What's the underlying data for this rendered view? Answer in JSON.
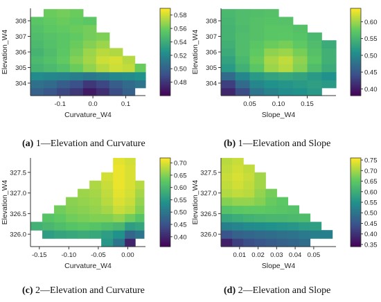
{
  "captions": [
    {
      "label": "(a)",
      "text": "1—Elevation and Curvature"
    },
    {
      "label": "(b)",
      "text": "1—Elevation and Slope"
    },
    {
      "label": "(c)",
      "text": "2—Elevation and Curvature"
    },
    {
      "label": "(d)",
      "text": "2—Elevation and Slope"
    }
  ],
  "chart_data": [
    {
      "type": "heatmap",
      "xlabel": "Curvature_W4",
      "ylabel": "Elevation_W4",
      "xlim": [
        -0.19,
        0.16
      ],
      "ylim": [
        303.2,
        308.8
      ],
      "xticks": [
        -0.1,
        0.0,
        0.1
      ],
      "xtick_labels": [
        "-0.1",
        "0.0",
        "0.1"
      ],
      "yticks": [
        304,
        305,
        306,
        307,
        308
      ],
      "ytick_labels": [
        "304",
        "305",
        "306",
        "307",
        "308"
      ],
      "colorbar": {
        "min": 0.46,
        "max": 0.59,
        "ticks": [
          0.48,
          0.5,
          0.52,
          0.54,
          0.56,
          0.58
        ],
        "tick_labels": [
          "0.48",
          "0.50",
          "0.52",
          "0.54",
          "0.56",
          "0.58"
        ]
      },
      "colormap": [
        "#440154",
        "#3b528b",
        "#21918c",
        "#5ec962",
        "#fde725"
      ],
      "x_centers": [
        -0.17,
        -0.13,
        -0.09,
        -0.05,
        -0.01,
        0.03,
        0.07,
        0.11,
        0.145
      ],
      "y_centers": [
        303.45,
        303.95,
        304.45,
        305.0,
        305.5,
        306.0,
        306.5,
        307.0,
        307.5,
        308.0,
        308.5
      ],
      "z": [
        [
          0.5,
          0.495,
          0.488,
          0.482,
          0.47,
          0.478,
          0.49,
          0.5,
          null
        ],
        [
          0.508,
          0.505,
          0.498,
          0.492,
          0.482,
          0.488,
          0.498,
          0.505,
          0.51
        ],
        [
          0.522,
          0.52,
          0.518,
          0.515,
          0.512,
          0.515,
          0.52,
          0.522,
          0.525
        ],
        [
          0.545,
          0.548,
          0.552,
          0.56,
          0.568,
          0.575,
          0.58,
          0.578,
          0.56
        ],
        [
          0.548,
          0.552,
          0.558,
          0.565,
          0.572,
          0.58,
          0.582,
          0.575,
          null
        ],
        [
          0.545,
          0.55,
          0.556,
          0.562,
          0.57,
          0.576,
          0.574,
          null,
          null
        ],
        [
          0.548,
          0.552,
          0.555,
          0.56,
          0.565,
          0.57,
          null,
          null,
          null
        ],
        [
          0.55,
          0.553,
          0.555,
          0.558,
          0.562,
          0.564,
          null,
          null,
          null
        ],
        [
          0.552,
          0.556,
          0.558,
          0.56,
          0.562,
          null,
          null,
          null,
          null
        ],
        [
          0.555,
          0.558,
          0.56,
          0.558,
          0.556,
          null,
          null,
          null,
          null
        ],
        [
          null,
          0.56,
          0.562,
          0.56,
          null,
          null,
          null,
          null,
          null
        ]
      ]
    },
    {
      "type": "heatmap",
      "xlabel": "Slope_W4",
      "ylabel": "Elevation_W4",
      "xlim": [
        0.0,
        0.2
      ],
      "ylim": [
        303.2,
        308.8
      ],
      "xticks": [
        0.05,
        0.1,
        0.15
      ],
      "xtick_labels": [
        "0.05",
        "0.10",
        "0.15"
      ],
      "yticks": [
        304,
        305,
        306,
        307,
        308
      ],
      "ytick_labels": [
        "304",
        "305",
        "306",
        "307",
        "308"
      ],
      "colorbar": {
        "min": 0.38,
        "max": 0.64,
        "ticks": [
          0.4,
          0.45,
          0.5,
          0.55,
          0.6
        ],
        "tick_labels": [
          "0.40",
          "0.45",
          "0.50",
          "0.55",
          "0.60"
        ]
      },
      "colormap": [
        "#440154",
        "#3b528b",
        "#21918c",
        "#5ec962",
        "#fde725"
      ],
      "x_centers": [
        0.0125,
        0.0375,
        0.0625,
        0.0875,
        0.1125,
        0.1375,
        0.1625,
        0.1875
      ],
      "y_centers": [
        303.45,
        303.95,
        304.45,
        305.0,
        305.5,
        306.0,
        306.5,
        307.0,
        307.5,
        308.0,
        308.5
      ],
      "z": [
        [
          0.41,
          0.44,
          0.48,
          0.495,
          0.505,
          0.51,
          0.52,
          null
        ],
        [
          0.43,
          0.47,
          0.5,
          0.51,
          0.515,
          0.52,
          0.525,
          0.52
        ],
        [
          0.47,
          0.5,
          0.52,
          0.53,
          0.535,
          0.53,
          0.52,
          0.51
        ],
        [
          0.52,
          0.545,
          0.57,
          0.6,
          0.61,
          0.59,
          0.56,
          0.54
        ],
        [
          0.53,
          0.555,
          0.58,
          0.605,
          0.615,
          0.595,
          0.57,
          0.545
        ],
        [
          0.54,
          0.56,
          0.575,
          0.595,
          0.6,
          0.585,
          0.565,
          0.545
        ],
        [
          0.545,
          0.56,
          0.57,
          0.58,
          0.585,
          0.575,
          0.56,
          0.54
        ],
        [
          0.55,
          0.56,
          0.565,
          0.57,
          0.572,
          0.568,
          0.555,
          null
        ],
        [
          0.55,
          0.558,
          0.565,
          0.57,
          0.57,
          0.565,
          null,
          null
        ],
        [
          0.552,
          0.56,
          0.565,
          0.568,
          0.566,
          null,
          null,
          null
        ],
        [
          0.555,
          0.56,
          0.562,
          0.565,
          null,
          null,
          null,
          null
        ]
      ]
    },
    {
      "type": "heatmap",
      "xlabel": "Curvature_W4",
      "ylabel": "Elevation_W4",
      "xlim": [
        -0.165,
        0.03
      ],
      "ylim": [
        325.7,
        327.85
      ],
      "xticks": [
        -0.15,
        -0.1,
        -0.05,
        0.0
      ],
      "xtick_labels": [
        "-0.15",
        "-0.10",
        "-0.05",
        "0.00"
      ],
      "yticks": [
        326.0,
        326.5,
        327.0,
        327.5
      ],
      "ytick_labels": [
        "326.0",
        "326.5",
        "327.0",
        "327.5"
      ],
      "colorbar": {
        "min": 0.36,
        "max": 0.72,
        "ticks": [
          0.4,
          0.45,
          0.5,
          0.55,
          0.6,
          0.65,
          0.7
        ],
        "tick_labels": [
          "0.40",
          "0.45",
          "0.50",
          "0.55",
          "0.60",
          "0.65",
          "0.70"
        ]
      },
      "colormap": [
        "#440154",
        "#3b528b",
        "#21918c",
        "#5ec962",
        "#fde725"
      ],
      "x_centers": [
        -0.155,
        -0.135,
        -0.115,
        -0.095,
        -0.075,
        -0.055,
        -0.035,
        -0.015,
        0.005,
        0.02
      ],
      "y_centers": [
        325.8,
        326.0,
        326.2,
        326.4,
        326.6,
        326.8,
        327.0,
        327.2,
        327.4,
        327.6,
        327.78
      ],
      "z": [
        [
          null,
          null,
          null,
          null,
          null,
          null,
          0.55,
          0.5,
          0.4,
          null
        ],
        [
          null,
          0.56,
          0.57,
          0.575,
          0.58,
          0.575,
          0.56,
          0.54,
          0.48,
          0.5
        ],
        [
          0.59,
          0.6,
          0.61,
          0.62,
          0.625,
          0.62,
          0.61,
          0.6,
          0.56,
          0.57
        ],
        [
          null,
          0.62,
          0.63,
          0.64,
          0.645,
          0.65,
          0.65,
          0.66,
          0.64,
          0.62
        ],
        [
          null,
          null,
          0.64,
          0.65,
          0.655,
          0.66,
          0.67,
          0.69,
          0.68,
          0.65
        ],
        [
          null,
          null,
          null,
          0.655,
          0.66,
          0.665,
          0.68,
          0.7,
          0.69,
          0.66
        ],
        [
          null,
          null,
          null,
          null,
          0.665,
          0.67,
          0.685,
          0.705,
          0.695,
          0.67
        ],
        [
          null,
          null,
          null,
          null,
          null,
          0.675,
          0.69,
          0.71,
          0.7,
          0.68
        ],
        [
          null,
          null,
          null,
          null,
          null,
          null,
          0.695,
          0.71,
          0.7,
          null
        ],
        [
          null,
          null,
          null,
          null,
          null,
          null,
          null,
          0.71,
          0.7,
          null
        ],
        [
          null,
          null,
          null,
          null,
          null,
          null,
          null,
          0.705,
          0.695,
          null
        ]
      ]
    },
    {
      "type": "heatmap",
      "xlabel": "Slope_W4",
      "ylabel": "Elevation_W4",
      "xlim": [
        0.0,
        0.062
      ],
      "ylim": [
        325.7,
        327.85
      ],
      "xticks": [
        0.01,
        0.02,
        0.03,
        0.04,
        0.05
      ],
      "xtick_labels": [
        "0.01",
        "0.02",
        "0.03",
        "0.04",
        "0.05"
      ],
      "yticks": [
        326.0,
        326.5,
        327.0,
        327.5
      ],
      "ytick_labels": [
        "326.0",
        "326.5",
        "327.0",
        "327.5"
      ],
      "colorbar": {
        "min": 0.34,
        "max": 0.76,
        "ticks": [
          0.35,
          0.4,
          0.45,
          0.5,
          0.55,
          0.6,
          0.65,
          0.7,
          0.75
        ],
        "tick_labels": [
          "0.35",
          "0.40",
          "0.45",
          "0.50",
          "0.55",
          "0.60",
          "0.65",
          "0.70",
          "0.75"
        ]
      },
      "colormap": [
        "#440154",
        "#3b528b",
        "#21918c",
        "#5ec962",
        "#fde725"
      ],
      "x_centers": [
        0.003,
        0.009,
        0.015,
        0.021,
        0.027,
        0.033,
        0.039,
        0.045,
        0.051,
        0.057
      ],
      "y_centers": [
        325.8,
        326.0,
        326.2,
        326.4,
        326.6,
        326.8,
        327.0,
        327.2,
        327.4,
        327.6,
        327.78
      ],
      "z": [
        [
          0.38,
          0.42,
          0.44,
          0.45,
          0.46,
          0.47,
          0.48,
          0.49,
          null,
          null
        ],
        [
          0.45,
          0.47,
          0.48,
          0.485,
          0.49,
          0.495,
          0.5,
          0.51,
          0.52,
          0.52
        ],
        [
          0.52,
          0.53,
          0.54,
          0.545,
          0.55,
          0.555,
          0.56,
          0.57,
          0.575,
          null
        ],
        [
          0.59,
          0.6,
          0.61,
          0.615,
          0.62,
          0.62,
          0.625,
          0.63,
          null,
          null
        ],
        [
          0.64,
          0.65,
          0.655,
          0.655,
          0.65,
          0.645,
          0.64,
          null,
          null,
          null
        ],
        [
          0.68,
          0.69,
          0.69,
          0.68,
          0.66,
          0.65,
          null,
          null,
          null,
          null
        ],
        [
          0.71,
          0.72,
          0.715,
          0.69,
          0.67,
          null,
          null,
          null,
          null,
          null
        ],
        [
          0.72,
          0.73,
          0.72,
          0.7,
          null,
          null,
          null,
          null,
          null,
          null
        ],
        [
          0.725,
          0.735,
          0.725,
          0.7,
          null,
          null,
          null,
          null,
          null,
          null
        ],
        [
          0.72,
          0.73,
          0.72,
          null,
          null,
          null,
          null,
          null,
          null,
          null
        ],
        [
          0.715,
          0.725,
          null,
          null,
          null,
          null,
          null,
          null,
          null,
          null
        ]
      ]
    }
  ]
}
